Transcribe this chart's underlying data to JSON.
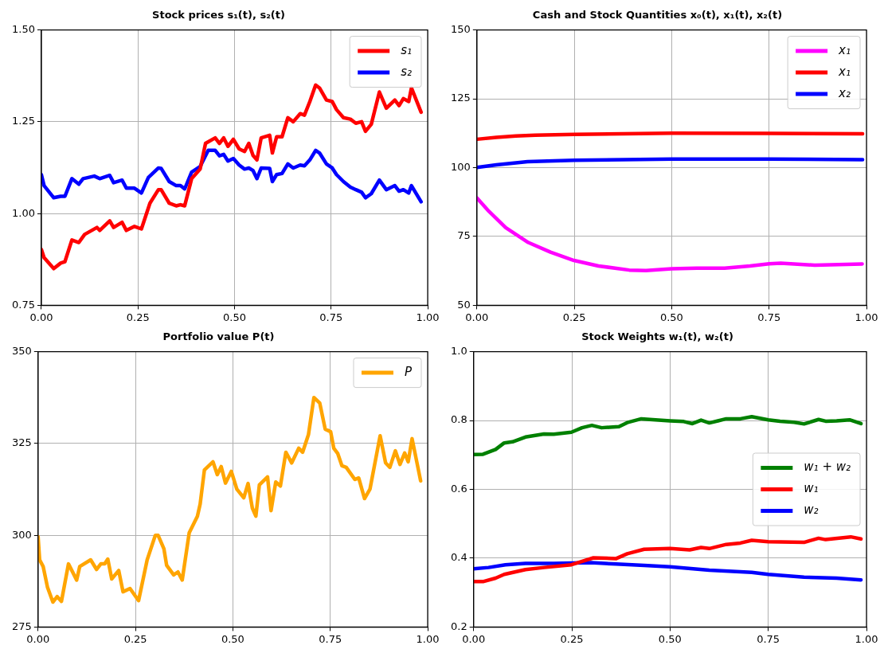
{
  "chart_data": [
    {
      "type": "line",
      "title": "Stock prices s₁(t), s₂(t)",
      "xlim": [
        0,
        1
      ],
      "xticks": [
        {
          "value": 0,
          "label": "0.00"
        },
        {
          "value": 0.25,
          "label": "0.25"
        },
        {
          "value": 0.5,
          "label": "0.50"
        },
        {
          "value": 0.75,
          "label": "0.75"
        },
        {
          "value": 1,
          "label": "1.00"
        }
      ],
      "ylim": [
        0.75,
        1.5
      ],
      "yticks": [
        {
          "value": 0.75,
          "label": "0.75"
        },
        {
          "value": 1,
          "label": "1.00"
        },
        {
          "value": 1.25,
          "label": "1.25"
        },
        {
          "value": 1.5,
          "label": "1.50"
        }
      ],
      "grid": true,
      "legend": "top right",
      "marker": "none",
      "series": [
        {
          "name": "s₁",
          "color": "#ff0000",
          "x": [
            0,
            0.007,
            0.032,
            0.05,
            0.061,
            0.079,
            0.097,
            0.112,
            0.144,
            0.151,
            0.177,
            0.187,
            0.209,
            0.22,
            0.241,
            0.259,
            0.281,
            0.303,
            0.31,
            0.331,
            0.349,
            0.36,
            0.371,
            0.389,
            0.411,
            0.425,
            0.45,
            0.461,
            0.472,
            0.483,
            0.497,
            0.512,
            0.526,
            0.537,
            0.548,
            0.558,
            0.569,
            0.591,
            0.598,
            0.609,
            0.623,
            0.638,
            0.652,
            0.67,
            0.681,
            0.695,
            0.71,
            0.72,
            0.738,
            0.753,
            0.764,
            0.782,
            0.8,
            0.814,
            0.829,
            0.839,
            0.854,
            0.875,
            0.893,
            0.915,
            0.926,
            0.937,
            0.951,
            0.958,
            0.983
          ],
          "values": [
            0.902,
            0.88,
            0.85,
            0.865,
            0.869,
            0.928,
            0.921,
            0.943,
            0.962,
            0.954,
            0.98,
            0.962,
            0.976,
            0.954,
            0.965,
            0.958,
            1.028,
            1.065,
            1.065,
            1.028,
            1.021,
            1.024,
            1.021,
            1.095,
            1.121,
            1.191,
            1.206,
            1.191,
            1.206,
            1.183,
            1.202,
            1.176,
            1.169,
            1.191,
            1.158,
            1.146,
            1.206,
            1.213,
            1.165,
            1.209,
            1.209,
            1.261,
            1.25,
            1.272,
            1.268,
            1.305,
            1.35,
            1.342,
            1.309,
            1.305,
            1.283,
            1.261,
            1.257,
            1.246,
            1.25,
            1.224,
            1.243,
            1.331,
            1.287,
            1.309,
            1.294,
            1.313,
            1.305,
            1.342,
            1.276
          ]
        },
        {
          "name": "s₂",
          "color": "#0000ff",
          "x": [
            0,
            0.007,
            0.032,
            0.05,
            0.061,
            0.079,
            0.097,
            0.108,
            0.137,
            0.151,
            0.177,
            0.187,
            0.209,
            0.22,
            0.241,
            0.259,
            0.277,
            0.303,
            0.31,
            0.331,
            0.349,
            0.36,
            0.371,
            0.389,
            0.411,
            0.432,
            0.45,
            0.461,
            0.472,
            0.483,
            0.497,
            0.512,
            0.526,
            0.537,
            0.548,
            0.558,
            0.569,
            0.591,
            0.598,
            0.609,
            0.623,
            0.638,
            0.652,
            0.67,
            0.681,
            0.695,
            0.71,
            0.72,
            0.738,
            0.753,
            0.764,
            0.782,
            0.8,
            0.814,
            0.829,
            0.839,
            0.854,
            0.875,
            0.893,
            0.915,
            0.926,
            0.937,
            0.951,
            0.958,
            0.983
          ],
          "values": [
            1.106,
            1.076,
            1.043,
            1.047,
            1.047,
            1.095,
            1.08,
            1.095,
            1.102,
            1.095,
            1.104,
            1.084,
            1.091,
            1.069,
            1.069,
            1.056,
            1.098,
            1.124,
            1.123,
            1.087,
            1.076,
            1.076,
            1.067,
            1.113,
            1.128,
            1.172,
            1.172,
            1.157,
            1.161,
            1.143,
            1.15,
            1.132,
            1.121,
            1.124,
            1.117,
            1.095,
            1.124,
            1.123,
            1.087,
            1.106,
            1.109,
            1.135,
            1.124,
            1.132,
            1.13,
            1.146,
            1.172,
            1.165,
            1.135,
            1.124,
            1.106,
            1.087,
            1.072,
            1.065,
            1.058,
            1.043,
            1.054,
            1.091,
            1.065,
            1.076,
            1.061,
            1.065,
            1.056,
            1.076,
            1.032
          ]
        }
      ]
    },
    {
      "type": "line",
      "title": "Cash and Stock Quantities x₀(t), x₁(t), x₂(t)",
      "xlim": [
        0,
        1
      ],
      "xticks": [
        {
          "value": 0,
          "label": "0.00"
        },
        {
          "value": 0.25,
          "label": "0.25"
        },
        {
          "value": 0.5,
          "label": "0.50"
        },
        {
          "value": 0.75,
          "label": "0.75"
        },
        {
          "value": 1,
          "label": "1.00"
        }
      ],
      "ylim": [
        50,
        150
      ],
      "yticks": [
        50,
        75,
        100,
        125,
        150
      ],
      "grid": true,
      "legend": "top right",
      "marker": "none",
      "series": [
        {
          "name": "x₁",
          "color": "#ff00ff",
          "x": [
            0,
            0.031,
            0.074,
            0.132,
            0.189,
            0.249,
            0.312,
            0.391,
            0.434,
            0.5,
            0.564,
            0.636,
            0.701,
            0.75,
            0.78,
            0.867,
            0.989
          ],
          "values": [
            89,
            84.1,
            78.2,
            72.8,
            69.3,
            66.3,
            64.3,
            62.8,
            62.6,
            63.3,
            63.5,
            63.5,
            64.3,
            65.1,
            65.3,
            64.6,
            65
          ]
        },
        {
          "name": "x₁",
          "color": "#ff0000",
          "x": [
            0,
            0.05,
            0.1,
            0.15,
            0.25,
            0.5,
            0.75,
            0.99
          ],
          "values": [
            110.3,
            111,
            111.5,
            111.8,
            112.1,
            112.5,
            112.4,
            112.3
          ]
        },
        {
          "name": "x₂",
          "color": "#0000ff",
          "x": [
            0,
            0.05,
            0.13,
            0.25,
            0.5,
            0.75,
            0.99
          ],
          "values": [
            100.1,
            101,
            102.2,
            102.7,
            103.1,
            103.1,
            102.9
          ]
        }
      ]
    },
    {
      "type": "line",
      "title": "Portfolio value P(t)",
      "xlim": [
        0,
        1
      ],
      "xticks": [
        {
          "value": 0,
          "label": "0.00"
        },
        {
          "value": 0.25,
          "label": "0.25"
        },
        {
          "value": 0.5,
          "label": "0.50"
        },
        {
          "value": 0.75,
          "label": "0.75"
        },
        {
          "value": 1,
          "label": "1.00"
        }
      ],
      "ylim": [
        275,
        350
      ],
      "yticks": [
        275,
        300,
        325,
        350
      ],
      "grid": true,
      "legend": "top right",
      "marker": "none",
      "series": [
        {
          "name": "P",
          "color": "#ffa500",
          "x": [
            0,
            0.004,
            0.013,
            0.024,
            0.038,
            0.049,
            0.06,
            0.078,
            0.099,
            0.107,
            0.135,
            0.15,
            0.161,
            0.171,
            0.179,
            0.189,
            0.207,
            0.218,
            0.236,
            0.258,
            0.28,
            0.301,
            0.308,
            0.323,
            0.33,
            0.348,
            0.359,
            0.37,
            0.388,
            0.409,
            0.416,
            0.427,
            0.449,
            0.46,
            0.47,
            0.481,
            0.496,
            0.51,
            0.528,
            0.539,
            0.55,
            0.559,
            0.568,
            0.589,
            0.598,
            0.61,
            0.622,
            0.636,
            0.651,
            0.669,
            0.679,
            0.694,
            0.708,
            0.723,
            0.737,
            0.751,
            0.759,
            0.769,
            0.78,
            0.791,
            0.813,
            0.823,
            0.838,
            0.852,
            0.878,
            0.892,
            0.903,
            0.917,
            0.929,
            0.941,
            0.95,
            0.96,
            0.982
          ],
          "values": [
            299.6,
            293.3,
            291.5,
            285.9,
            281.8,
            283.3,
            282,
            292.2,
            287.8,
            291.5,
            293.3,
            290.7,
            292.2,
            292.2,
            293.5,
            288.1,
            290.4,
            284.6,
            285.5,
            282.2,
            293.3,
            300,
            300,
            296.3,
            291.8,
            289.2,
            290,
            287.8,
            300.7,
            305.2,
            308.5,
            317.8,
            320,
            316.5,
            318.7,
            314.2,
            317.4,
            312.6,
            310.2,
            314.1,
            307.4,
            305.2,
            313.7,
            315.9,
            306.7,
            314.5,
            313.4,
            322.6,
            319.7,
            323.7,
            322.6,
            327.4,
            337.5,
            336,
            328.9,
            328.2,
            323.7,
            322.3,
            318.9,
            318.5,
            315.2,
            315.6,
            310,
            312.6,
            327.1,
            319.7,
            318.5,
            323,
            319.3,
            322.4,
            320,
            326.3,
            314.8
          ]
        }
      ]
    },
    {
      "type": "line",
      "title": "Stock Weights w₁(t), w₂(t)",
      "xlim": [
        0,
        1
      ],
      "xticks": [
        {
          "value": 0,
          "label": "0.00"
        },
        {
          "value": 0.25,
          "label": "0.25"
        },
        {
          "value": 0.5,
          "label": "0.50"
        },
        {
          "value": 0.75,
          "label": "0.75"
        },
        {
          "value": 1,
          "label": "1.00"
        }
      ],
      "ylim": [
        0.2,
        1
      ],
      "yticks": [
        0.2,
        0.4,
        0.6,
        0.8,
        {
          "value": 1,
          "label": "1.0"
        }
      ],
      "grid": true,
      "legend": "right",
      "marker": "none",
      "series": [
        {
          "name": "w₁ + w₂",
          "color": "#008000",
          "x": [
            0,
            0.024,
            0.056,
            0.078,
            0.099,
            0.132,
            0.179,
            0.204,
            0.249,
            0.276,
            0.301,
            0.326,
            0.37,
            0.391,
            0.427,
            0.463,
            0.5,
            0.535,
            0.557,
            0.579,
            0.6,
            0.622,
            0.643,
            0.679,
            0.708,
            0.75,
            0.78,
            0.816,
            0.841,
            0.878,
            0.896,
            0.924,
            0.957,
            0.986
          ],
          "values": [
            0.701,
            0.702,
            0.716,
            0.735,
            0.738,
            0.752,
            0.761,
            0.76,
            0.766,
            0.779,
            0.786,
            0.779,
            0.782,
            0.794,
            0.805,
            0.802,
            0.799,
            0.797,
            0.791,
            0.801,
            0.793,
            0.799,
            0.805,
            0.805,
            0.811,
            0.802,
            0.798,
            0.795,
            0.79,
            0.803,
            0.798,
            0.799,
            0.802,
            0.791
          ]
        },
        {
          "name": "w₁",
          "color": "#ff0000",
          "x": [
            0,
            0.024,
            0.056,
            0.078,
            0.132,
            0.179,
            0.249,
            0.305,
            0.363,
            0.391,
            0.434,
            0.5,
            0.55,
            0.579,
            0.6,
            0.643,
            0.679,
            0.708,
            0.75,
            0.841,
            0.878,
            0.896,
            0.96,
            0.986
          ],
          "values": [
            0.332,
            0.332,
            0.342,
            0.353,
            0.367,
            0.373,
            0.381,
            0.401,
            0.399,
            0.413,
            0.426,
            0.428,
            0.424,
            0.431,
            0.428,
            0.44,
            0.444,
            0.452,
            0.448,
            0.446,
            0.458,
            0.454,
            0.462,
            0.456
          ]
        },
        {
          "name": "w₂",
          "color": "#0000ff",
          "x": [
            0,
            0.038,
            0.081,
            0.132,
            0.204,
            0.298,
            0.363,
            0.434,
            0.5,
            0.6,
            0.708,
            0.75,
            0.841,
            0.924,
            0.986
          ],
          "values": [
            0.369,
            0.373,
            0.381,
            0.385,
            0.385,
            0.387,
            0.383,
            0.379,
            0.375,
            0.365,
            0.359,
            0.353,
            0.345,
            0.342,
            0.337
          ]
        }
      ]
    }
  ]
}
